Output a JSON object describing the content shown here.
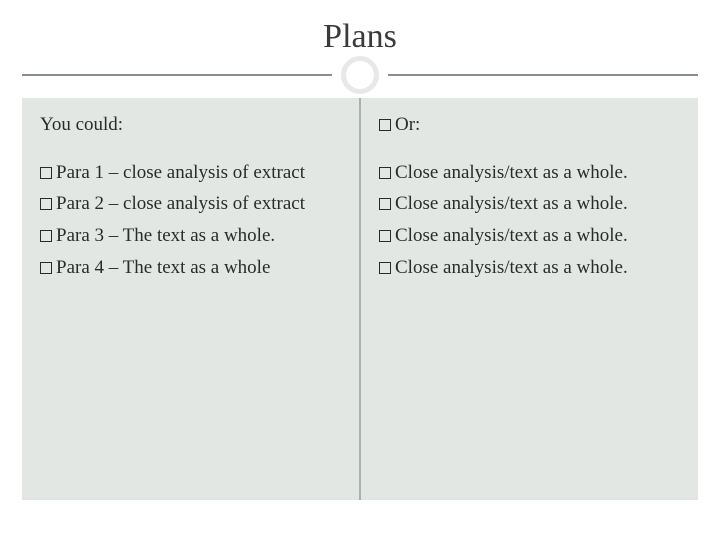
{
  "title": "Plans",
  "colors": {
    "page_bg": "#bfc9c4",
    "slide_bg": "#ffffff",
    "content_bg": "#e3e7e4",
    "rule": "#878f8a",
    "circle_border": "#e6e9e7",
    "text": "#2a2a2a",
    "divider": "#a9b2ad"
  },
  "typography": {
    "title_fontsize": 34,
    "body_fontsize": 19,
    "font_family": "Georgia"
  },
  "left": {
    "heading": "You could:",
    "items": [
      "Para 1 – close analysis of extract",
      "Para 2 – close analysis of extract",
      "Para 3 – The text as a whole.",
      "Para 4 – The text as a whole"
    ]
  },
  "right": {
    "heading": "Or:",
    "items": [
      "Close analysis/text as a whole.",
      "Close analysis/text as a whole.",
      "Close analysis/text as a whole.",
      "Close analysis/text as a whole."
    ]
  }
}
